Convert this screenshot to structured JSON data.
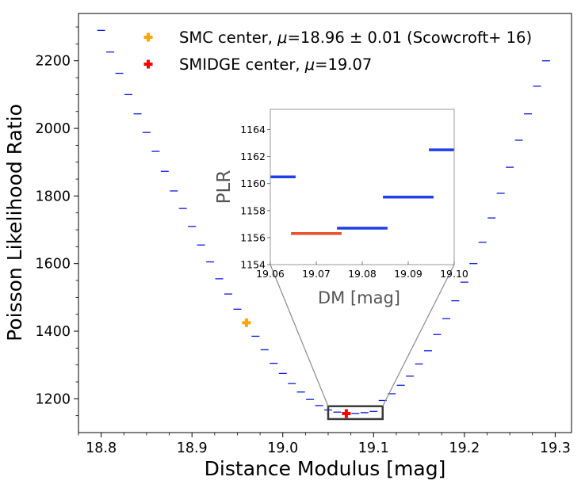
{
  "chart_data": {
    "type": "scatter",
    "xlabel": "Distance Modulus [mag]",
    "ylabel": "Poisson Likelihood Ratio",
    "xlim": [
      18.775,
      19.318
    ],
    "ylim": [
      1100,
      2340
    ],
    "x_ticks": [
      "18.8",
      "18.9",
      "19.0",
      "19.1",
      "19.2",
      "19.3"
    ],
    "y_ticks": [
      "1200",
      "1400",
      "1600",
      "1800",
      "2000",
      "2200"
    ],
    "series": [
      {
        "name": "PLR",
        "marker": "dash",
        "color": "#0b1bd9",
        "x": [
          18.8,
          18.81,
          18.82,
          18.83,
          18.84,
          18.85,
          18.86,
          18.87,
          18.88,
          18.89,
          18.9,
          18.91,
          18.92,
          18.93,
          18.94,
          18.95,
          18.96,
          18.97,
          18.98,
          18.99,
          19.0,
          19.01,
          19.02,
          19.03,
          19.04,
          19.05,
          19.06,
          19.07,
          19.08,
          19.09,
          19.1,
          19.11,
          19.12,
          19.13,
          19.14,
          19.15,
          19.16,
          19.17,
          19.18,
          19.19,
          19.2,
          19.21,
          19.22,
          19.23,
          19.24,
          19.25,
          19.26,
          19.27,
          19.28,
          19.29
        ],
        "y": [
          2290,
          2226,
          2163,
          2100,
          2043,
          1988,
          1932,
          1873,
          1815,
          1763,
          1710,
          1655,
          1605,
          1555,
          1510,
          1465,
          1425,
          1385,
          1345,
          1305,
          1275,
          1245,
          1220,
          1198,
          1180,
          1167,
          1160.5,
          1156.3,
          1156.7,
          1159,
          1162.5,
          1195,
          1215,
          1240,
          1267,
          1303,
          1342,
          1390,
          1437,
          1490,
          1545,
          1600,
          1663,
          1735,
          1808,
          1885,
          1965,
          2043,
          2125,
          2200
        ]
      }
    ],
    "markers": [
      {
        "name": "SMC center",
        "x": 18.96,
        "y": 1425,
        "color": "#ffa500"
      },
      {
        "name": "SMIDGE center",
        "x": 19.07,
        "y": 1156.3,
        "color": "#ff0000"
      }
    ],
    "legend": {
      "position": "top",
      "entries": [
        {
          "label_pre": "SMC center, ",
          "mu": "μ",
          "label_post": "=18.96 ± 0.01 (Scowcroft+ 16)",
          "color": "#ffa500"
        },
        {
          "label_pre": "SMIDGE center, ",
          "mu": "μ",
          "label_post": "=19.07",
          "color": "#ff0000"
        }
      ]
    },
    "zoom_region": {
      "x": [
        19.05,
        19.11
      ],
      "y": [
        1140,
        1178
      ]
    },
    "inset": {
      "xlabel": "DM [mag]",
      "ylabel": "PLR",
      "xlim": [
        19.06,
        19.1
      ],
      "ylim": [
        1154,
        1165.5
      ],
      "x_ticks": [
        "19.06",
        "19.07",
        "19.08",
        "19.09",
        "19.10"
      ],
      "y_ticks": [
        "1154",
        "1156",
        "1158",
        "1160",
        "1162",
        "1164"
      ],
      "points": [
        {
          "x": 19.06,
          "y": 1160.5,
          "color": "#1f3fe8"
        },
        {
          "x": 19.07,
          "y": 1156.3,
          "color": "#e8502a"
        },
        {
          "x": 19.08,
          "y": 1156.7,
          "color": "#1f3fe8"
        },
        {
          "x": 19.09,
          "y": 1159.0,
          "color": "#1f3fe8"
        },
        {
          "x": 19.1,
          "y": 1162.5,
          "color": "#1f3fe8"
        }
      ]
    }
  }
}
